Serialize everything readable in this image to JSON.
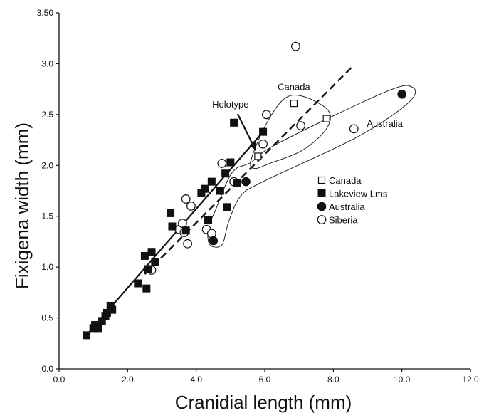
{
  "chart_data": {
    "type": "scatter",
    "xlabel": "Cranidial length (mm)",
    "ylabel": "Fixigena width (mm)",
    "xlim": [
      0,
      12
    ],
    "ylim": [
      0,
      3.5
    ],
    "x_ticks": [
      {
        "value": 0,
        "label": "0.0"
      },
      {
        "value": 2,
        "label": "2.0"
      },
      {
        "value": 4,
        "label": "4.0"
      },
      {
        "value": 6,
        "label": "6.0"
      },
      {
        "value": 8,
        "label": "8.0"
      },
      {
        "value": 10,
        "label": "10.0"
      },
      {
        "value": 12,
        "label": "12.0"
      }
    ],
    "y_ticks": [
      {
        "value": 0,
        "label": "0.0"
      },
      {
        "value": 0.5,
        "label": "0.5"
      },
      {
        "value": 1.0,
        "label": "1.0"
      },
      {
        "value": 1.5,
        "label": "1.5"
      },
      {
        "value": 2.0,
        "label": "2.0"
      },
      {
        "value": 2.5,
        "label": "2.5"
      },
      {
        "value": 3.0,
        "label": "3.0"
      },
      {
        "value": 3.5,
        "label": "3.50"
      }
    ],
    "legend_position": "right",
    "series": [
      {
        "name": "Canada",
        "marker": "open-square",
        "points": [
          [
            5.8,
            2.09
          ],
          [
            6.85,
            2.61
          ],
          [
            7.8,
            2.46
          ]
        ]
      },
      {
        "name": "Lakeview Lms",
        "marker": "filled-square",
        "points": [
          [
            0.8,
            0.33
          ],
          [
            1.0,
            0.4
          ],
          [
            1.05,
            0.43
          ],
          [
            1.15,
            0.4
          ],
          [
            1.25,
            0.47
          ],
          [
            1.35,
            0.52
          ],
          [
            1.4,
            0.55
          ],
          [
            1.5,
            0.62
          ],
          [
            1.55,
            0.58
          ],
          [
            2.3,
            0.84
          ],
          [
            2.5,
            1.11
          ],
          [
            2.55,
            0.79
          ],
          [
            2.6,
            0.98
          ],
          [
            2.7,
            1.15
          ],
          [
            2.8,
            1.05
          ],
          [
            3.25,
            1.53
          ],
          [
            3.3,
            1.4
          ],
          [
            3.7,
            1.36
          ],
          [
            4.15,
            1.73
          ],
          [
            4.25,
            1.77
          ],
          [
            4.35,
            1.46
          ],
          [
            4.45,
            1.84
          ],
          [
            4.7,
            1.75
          ],
          [
            4.85,
            1.92
          ],
          [
            4.9,
            1.59
          ],
          [
            5.0,
            2.03
          ],
          [
            5.1,
            2.42
          ],
          [
            5.2,
            1.83
          ],
          [
            5.95,
            2.33
          ]
        ]
      },
      {
        "name": "Australia",
        "marker": "filled-circle",
        "points": [
          [
            4.5,
            1.26
          ],
          [
            5.45,
            1.84
          ],
          [
            10.0,
            2.7
          ]
        ]
      },
      {
        "name": "Siberia",
        "marker": "open-circle",
        "points": [
          [
            2.7,
            0.97
          ],
          [
            3.5,
            1.37
          ],
          [
            3.6,
            1.43
          ],
          [
            3.65,
            1.34
          ],
          [
            3.7,
            1.67
          ],
          [
            3.75,
            1.23
          ],
          [
            3.85,
            1.6
          ],
          [
            4.3,
            1.37
          ],
          [
            4.45,
            1.33
          ],
          [
            4.75,
            2.02
          ],
          [
            5.1,
            1.84
          ],
          [
            5.95,
            2.21
          ],
          [
            6.05,
            2.5
          ],
          [
            6.9,
            3.17
          ],
          [
            7.05,
            2.39
          ],
          [
            8.6,
            2.36
          ]
        ]
      }
    ],
    "lines": [
      {
        "id": "lakeview-fit",
        "style": "solid",
        "points": [
          [
            0.8,
            0.33
          ],
          [
            5.95,
            2.33
          ]
        ]
      },
      {
        "id": "combined-fit",
        "style": "dashed",
        "points": [
          [
            2.5,
            0.93
          ],
          [
            8.55,
            2.97
          ]
        ]
      }
    ],
    "annotations": [
      {
        "text": "Holotype",
        "at": [
          5.8,
          2.09
        ],
        "label_at": [
          5.0,
          2.57
        ]
      },
      {
        "text": "Canada",
        "label_at": [
          6.85,
          2.74
        ]
      },
      {
        "text": "Australia",
        "label_at": [
          9.5,
          2.38
        ]
      }
    ],
    "envelopes": [
      {
        "name": "Canada",
        "points": [
          [
            5.6,
            2.05
          ],
          [
            6.0,
            2.38
          ],
          [
            6.55,
            2.65
          ],
          [
            7.1,
            2.68
          ],
          [
            7.85,
            2.54
          ],
          [
            7.8,
            2.36
          ],
          [
            7.1,
            2.15
          ],
          [
            6.15,
            2.02
          ],
          [
            5.7,
            1.97
          ]
        ]
      },
      {
        "name": "Australia",
        "points": [
          [
            4.4,
            1.22
          ],
          [
            4.35,
            1.38
          ],
          [
            4.55,
            1.55
          ],
          [
            5.05,
            1.93
          ],
          [
            5.6,
            2.03
          ],
          [
            6.4,
            2.22
          ],
          [
            9.5,
            2.72
          ],
          [
            10.3,
            2.77
          ],
          [
            10.2,
            2.62
          ],
          [
            8.7,
            2.28
          ],
          [
            5.95,
            1.84
          ],
          [
            5.3,
            1.7
          ],
          [
            4.95,
            1.45
          ],
          [
            4.75,
            1.22
          ]
        ]
      }
    ]
  }
}
